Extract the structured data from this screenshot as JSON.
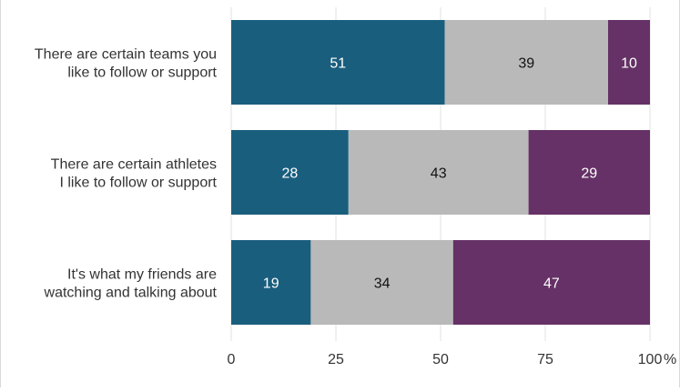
{
  "chart_data": {
    "type": "bar",
    "orientation": "horizontal",
    "stacked": true,
    "categories": [
      [
        "There are certain teams you",
        "like to follow or support"
      ],
      [
        "There are certain athletes",
        "I like to follow or support"
      ],
      [
        "It's what my friends are",
        "watching and talking about"
      ]
    ],
    "series": [
      {
        "color": "#1a5e7e",
        "label_color": "#ffffff",
        "values": [
          51,
          28,
          19
        ]
      },
      {
        "color": "#b9b9b9",
        "label_color": "#111111",
        "values": [
          39,
          43,
          34
        ]
      },
      {
        "color": "#653166",
        "label_color": "#ffffff",
        "values": [
          10,
          29,
          47
        ]
      }
    ],
    "xlim": [
      0,
      100
    ],
    "xticks": [
      0,
      25,
      50,
      75,
      100
    ],
    "tick_labels": [
      "0",
      "25",
      "50",
      "75",
      "100"
    ],
    "x_unit": "%",
    "grid": true,
    "legend": "none"
  }
}
